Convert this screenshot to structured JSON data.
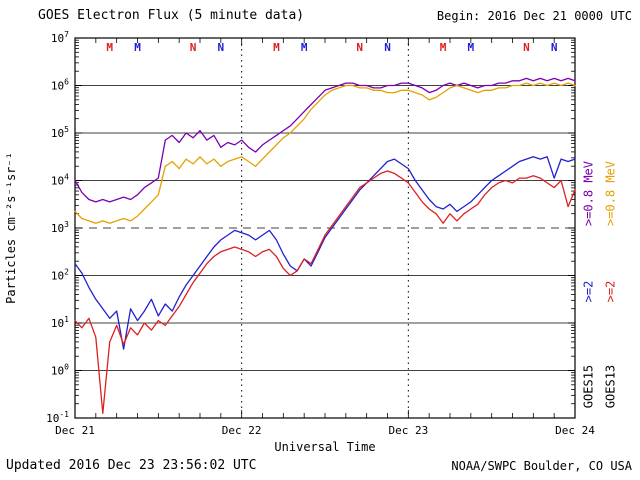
{
  "footer": {
    "updated": "Updated 2016 Dec 23 23:56:02 UTC",
    "source": "NOAA/SWPC Boulder, CO USA"
  },
  "chart_data": {
    "type": "line",
    "title": "GOES Electron Flux (5 minute data)",
    "begin_label": "Begin: 2016 Dec 21 0000 UTC",
    "xlabel": "Universal Time",
    "ylabel": "Particles cm⁻²s⁻¹sr⁻¹",
    "y_scale": "log10",
    "ylim_log10": [
      -1,
      7
    ],
    "y_decade_labels": [
      "10^-1",
      "10^0",
      "10^1",
      "10^2",
      "10^3",
      "10^4",
      "10^5",
      "10^6",
      "10^7"
    ],
    "x_range_hours": [
      0,
      72
    ],
    "hours_step": 1,
    "x_ticks": [
      {
        "hour": 0,
        "label": "Dec 21"
      },
      {
        "hour": 24,
        "label": "Dec 22"
      },
      {
        "hour": 48,
        "label": "Dec 23"
      },
      {
        "hour": 72,
        "label": "Dec 24"
      }
    ],
    "vertical_dotted_gridline_hours": [
      24,
      48
    ],
    "threshold_dashed_line_log10": 3,
    "grid": "solid horizontal lines each decade, dashed at 1e3, dotted vertical at day boundaries",
    "legend_position": "right-margin, rotated",
    "series": [
      {
        "name": "GOES15 >=0.8 MeV",
        "satellite": "GOES15",
        "energy": ">=0.8 MeV",
        "color": "#7b00b0",
        "values_log10": [
          4.0,
          3.75,
          3.6,
          3.55,
          3.6,
          3.55,
          3.6,
          3.65,
          3.6,
          3.7,
          3.85,
          3.95,
          4.05,
          4.85,
          4.95,
          4.8,
          5.0,
          4.9,
          5.05,
          4.85,
          4.95,
          4.7,
          4.8,
          4.75,
          4.85,
          4.7,
          4.6,
          4.75,
          4.85,
          4.95,
          5.05,
          5.15,
          5.3,
          5.45,
          5.6,
          5.75,
          5.9,
          5.95,
          6.0,
          6.05,
          6.05,
          6.0,
          6.0,
          5.95,
          5.95,
          6.0,
          6.0,
          6.05,
          6.05,
          6.0,
          5.95,
          5.85,
          5.9,
          6.0,
          6.05,
          6.0,
          6.05,
          6.0,
          5.95,
          6.0,
          6.0,
          6.05,
          6.05,
          6.1,
          6.1,
          6.15,
          6.1,
          6.15,
          6.1,
          6.15,
          6.1,
          6.15,
          6.1
        ]
      },
      {
        "name": "GOES13 >=0.8 MeV",
        "satellite": "GOES13",
        "energy": ">=0.8 MeV",
        "color": "#e6a000",
        "values_log10": [
          3.35,
          3.2,
          3.15,
          3.1,
          3.15,
          3.1,
          3.15,
          3.2,
          3.15,
          3.25,
          3.4,
          3.55,
          3.7,
          4.3,
          4.4,
          4.25,
          4.45,
          4.35,
          4.5,
          4.35,
          4.45,
          4.3,
          4.4,
          4.45,
          4.5,
          4.4,
          4.3,
          4.45,
          4.6,
          4.75,
          4.9,
          5.0,
          5.15,
          5.3,
          5.5,
          5.65,
          5.8,
          5.9,
          5.95,
          6.0,
          6.0,
          5.95,
          5.95,
          5.9,
          5.9,
          5.85,
          5.85,
          5.9,
          5.9,
          5.85,
          5.8,
          5.7,
          5.75,
          5.85,
          5.95,
          6.0,
          5.95,
          5.9,
          5.85,
          5.9,
          5.9,
          5.95,
          5.95,
          6.0,
          6.0,
          6.05,
          6.0,
          6.05,
          6.0,
          6.05,
          6.0,
          6.05,
          6.0
        ]
      },
      {
        "name": "GOES15 >=2 MeV",
        "satellite": "GOES15",
        "energy": ">=2 MeV",
        "color": "#2020d0",
        "values_log10": [
          2.25,
          2.05,
          1.75,
          1.5,
          1.3,
          1.1,
          1.25,
          0.45,
          1.3,
          1.05,
          1.25,
          1.5,
          1.15,
          1.4,
          1.25,
          1.55,
          1.8,
          2.0,
          2.2,
          2.4,
          2.6,
          2.75,
          2.85,
          2.95,
          2.9,
          2.85,
          2.75,
          2.85,
          2.95,
          2.75,
          2.45,
          2.2,
          2.1,
          2.35,
          2.2,
          2.5,
          2.8,
          3.0,
          3.2,
          3.4,
          3.6,
          3.8,
          3.95,
          4.1,
          4.25,
          4.4,
          4.45,
          4.35,
          4.25,
          4.0,
          3.8,
          3.6,
          3.45,
          3.4,
          3.5,
          3.35,
          3.45,
          3.55,
          3.7,
          3.85,
          4.0,
          4.1,
          4.2,
          4.3,
          4.4,
          4.45,
          4.5,
          4.45,
          4.5,
          4.05,
          4.45,
          4.4,
          4.45
        ]
      },
      {
        "name": "GOES13 >=2 MeV",
        "satellite": "GOES13",
        "energy": ">=2 MeV",
        "color": "#dd2020",
        "values_log10": [
          1.05,
          0.9,
          1.1,
          0.7,
          -0.9,
          0.6,
          0.95,
          0.55,
          0.9,
          0.75,
          1.0,
          0.85,
          1.05,
          0.95,
          1.15,
          1.35,
          1.6,
          1.85,
          2.05,
          2.25,
          2.4,
          2.5,
          2.55,
          2.6,
          2.55,
          2.5,
          2.4,
          2.5,
          2.55,
          2.4,
          2.15,
          2.0,
          2.1,
          2.35,
          2.25,
          2.55,
          2.85,
          3.05,
          3.25,
          3.45,
          3.65,
          3.85,
          3.95,
          4.05,
          4.15,
          4.2,
          4.15,
          4.05,
          3.95,
          3.75,
          3.55,
          3.4,
          3.3,
          3.1,
          3.3,
          3.15,
          3.3,
          3.4,
          3.5,
          3.7,
          3.85,
          3.95,
          4.0,
          3.95,
          4.05,
          4.05,
          4.1,
          4.05,
          3.95,
          3.85,
          4.0,
          3.45,
          3.8
        ]
      }
    ],
    "time_markers": [
      {
        "letter": "M",
        "hour": 5,
        "satellite": "GOES13",
        "color": "#dd2020"
      },
      {
        "letter": "M",
        "hour": 9,
        "satellite": "GOES15",
        "color": "#2020d0"
      },
      {
        "letter": "N",
        "hour": 17,
        "satellite": "GOES13",
        "color": "#dd2020"
      },
      {
        "letter": "N",
        "hour": 21,
        "satellite": "GOES15",
        "color": "#2020d0"
      },
      {
        "letter": "M",
        "hour": 29,
        "satellite": "GOES13",
        "color": "#dd2020"
      },
      {
        "letter": "M",
        "hour": 33,
        "satellite": "GOES15",
        "color": "#2020d0"
      },
      {
        "letter": "N",
        "hour": 41,
        "satellite": "GOES13",
        "color": "#dd2020"
      },
      {
        "letter": "N",
        "hour": 45,
        "satellite": "GOES15",
        "color": "#2020d0"
      },
      {
        "letter": "M",
        "hour": 53,
        "satellite": "GOES13",
        "color": "#dd2020"
      },
      {
        "letter": "M",
        "hour": 57,
        "satellite": "GOES15",
        "color": "#2020d0"
      },
      {
        "letter": "N",
        "hour": 65,
        "satellite": "GOES13",
        "color": "#dd2020"
      },
      {
        "letter": "N",
        "hour": 69,
        "satellite": "GOES15",
        "color": "#2020d0"
      }
    ],
    "right_legend": {
      "columns": [
        {
          "sat": "GOES15",
          "entries": [
            {
              "label": ">=0.8 MeV",
              "color": "#7b00b0"
            },
            {
              "label": ">=2",
              "color": "#2020d0"
            }
          ]
        },
        {
          "sat": "GOES13",
          "entries": [
            {
              "label": ">=0.8 MeV",
              "color": "#e6a000"
            },
            {
              "label": ">=2",
              "color": "#dd2020"
            }
          ]
        }
      ]
    }
  }
}
